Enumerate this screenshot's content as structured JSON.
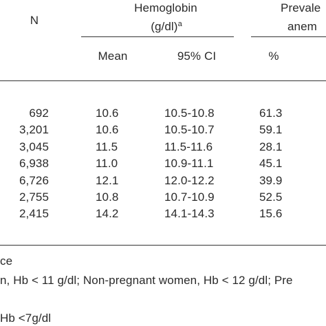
{
  "header": {
    "n_label": "N",
    "hemoglobin_line1": "Hemoglobin",
    "hemoglobin_line2": "(g/dl)",
    "hemoglobin_sup": "a",
    "prevalence_line1": "Prevale",
    "prevalence_line2": "anem",
    "sub_mean": "Mean",
    "sub_ci": "95% CI",
    "sub_pct": "%"
  },
  "rows": [
    {
      "n": "692",
      "mean": "10.6",
      "ci": "10.5-10.8",
      "pct": "61.3"
    },
    {
      "n": "3,201",
      "mean": "10.6",
      "ci": "10.5-10.7",
      "pct": "59.1"
    },
    {
      "n": "3,045",
      "mean": "11.5",
      "ci": "11.5-11.6",
      "pct": "28.1"
    },
    {
      "n": "6,938",
      "mean": "11.0",
      "ci": "10.9-11.1",
      "pct": "45.1"
    },
    {
      "n": "6,726",
      "mean": "12.1",
      "ci": "12.0-12.2",
      "pct": "39.9"
    },
    {
      "n": "2,755",
      "mean": "10.8",
      "ci": "10.7-10.9",
      "pct": "52.5"
    },
    {
      "n": "2,415",
      "mean": "14.2",
      "ci": "14.1-14.3",
      "pct": "15.6"
    }
  ],
  "footnotes": {
    "line1": "ce",
    "line2": "n, Hb < 11 g/dl; Non-pregnant women, Hb < 12 g/dl; Pre",
    "line3": "Hb <7g/dl"
  }
}
